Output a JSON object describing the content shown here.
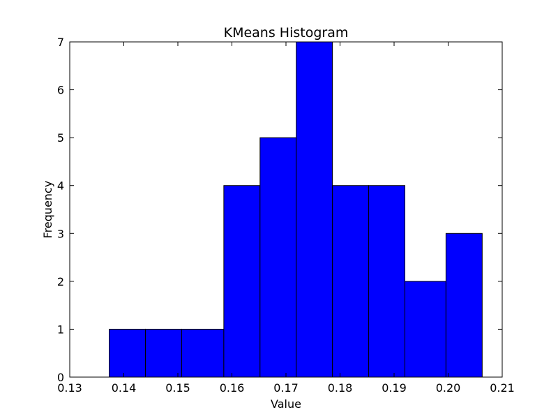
{
  "chart_data": {
    "type": "bar",
    "title": "KMeans Histogram",
    "xlabel": "Value",
    "ylabel": "Frequency",
    "xlim": [
      0.13,
      0.21
    ],
    "ylim": [
      0,
      7
    ],
    "bar_color": "#0000ff",
    "edge_color": "#000000",
    "grid": false,
    "bins": [
      {
        "start": 0.1373,
        "end": 0.144,
        "count": 1
      },
      {
        "start": 0.144,
        "end": 0.1507,
        "count": 1
      },
      {
        "start": 0.1507,
        "end": 0.1585,
        "count": 1
      },
      {
        "start": 0.1585,
        "end": 0.1652,
        "count": 4
      },
      {
        "start": 0.1652,
        "end": 0.1719,
        "count": 5
      },
      {
        "start": 0.1719,
        "end": 0.1786,
        "count": 7
      },
      {
        "start": 0.1786,
        "end": 0.1853,
        "count": 4
      },
      {
        "start": 0.1853,
        "end": 0.192,
        "count": 4
      },
      {
        "start": 0.192,
        "end": 0.1996,
        "count": 2
      },
      {
        "start": 0.1996,
        "end": 0.2063,
        "count": 3
      }
    ],
    "xticks": [
      "0.13",
      "0.14",
      "0.15",
      "0.16",
      "0.17",
      "0.18",
      "0.19",
      "0.20",
      "0.21"
    ],
    "yticks": [
      "0",
      "1",
      "2",
      "3",
      "4",
      "5",
      "6",
      "7"
    ]
  }
}
